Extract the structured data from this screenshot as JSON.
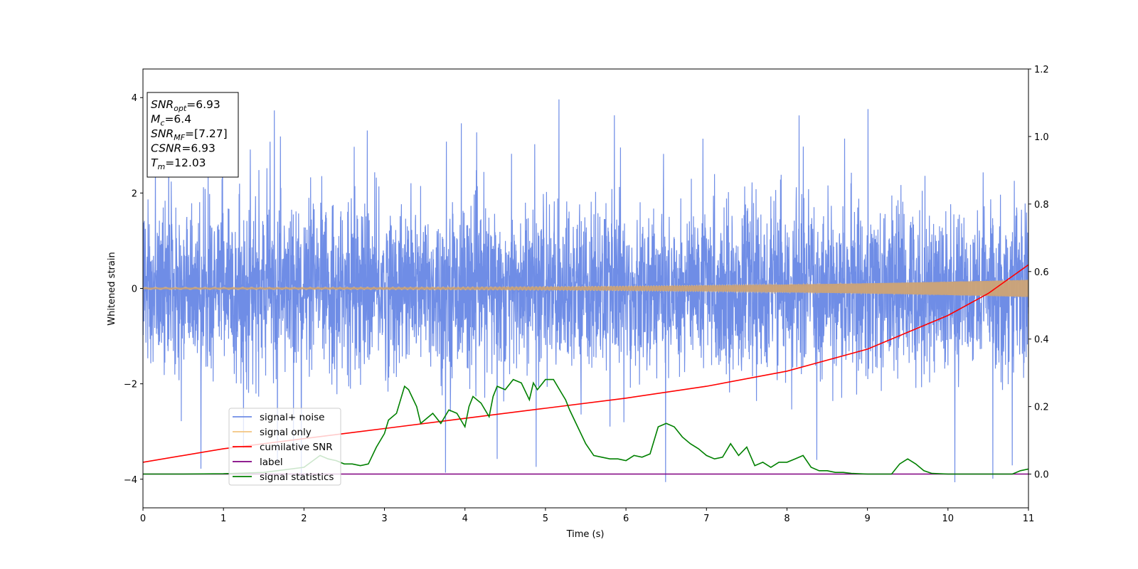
{
  "chart_data": {
    "type": "line",
    "xlabel": "Time (s)",
    "ylabel": "Whitened strain",
    "xlim": [
      0,
      11
    ],
    "ylim_left": [
      -4.6,
      4.6
    ],
    "ylim_right": [
      -0.1,
      1.2
    ],
    "x_ticks": [
      0,
      1,
      2,
      3,
      4,
      5,
      6,
      7,
      8,
      9,
      10,
      11
    ],
    "y_ticks_left": [
      -4,
      -2,
      0,
      2,
      4
    ],
    "y_ticks_right": [
      "0.0",
      "0.2",
      "0.4",
      "0.6",
      "0.8",
      "1.0",
      "1.2"
    ],
    "grid": false,
    "legend_position": "lower-left",
    "annotation_box": {
      "position": "upper-left",
      "lines": [
        {
          "sym": "SNR",
          "sub": "opt",
          "value": "=6.93"
        },
        {
          "sym": "M",
          "sub": "c",
          "value": "=6.4"
        },
        {
          "sym": "SNR",
          "sub": "MF",
          "value": "=[7.27]"
        },
        {
          "sym": "CSNR",
          "sub": "",
          "value": "=6.93"
        },
        {
          "sym": "T",
          "sub": "m",
          "value": "=12.03"
        }
      ]
    },
    "series": [
      {
        "name": "signal+ noise",
        "axis": "left",
        "color": "#6f8de6",
        "description_values": {
          "noise_std": 0.85,
          "max_spike": 4.2,
          "min_spike": -4.2
        }
      },
      {
        "name": "signal only",
        "axis": "left",
        "color": "#f2c580",
        "envelope_start": 0.02,
        "envelope_end": 0.18
      },
      {
        "name": "cumilative SNR",
        "axis": "right",
        "color": "#ff0000",
        "x": [
          0,
          1,
          2,
          3,
          4,
          5,
          6,
          7,
          8,
          9,
          10,
          10.5,
          11
        ],
        "y": [
          0.035,
          0.075,
          0.105,
          0.135,
          0.165,
          0.195,
          0.225,
          0.26,
          0.305,
          0.37,
          0.47,
          0.535,
          0.62
        ]
      },
      {
        "name": "label",
        "axis": "right",
        "color": "#800080",
        "x": [
          0,
          11
        ],
        "y": [
          0.0,
          0.0
        ]
      },
      {
        "name": "signal statistics",
        "axis": "right",
        "color": "#008000",
        "x": [
          0,
          0.5,
          1.0,
          1.5,
          2.0,
          2.2,
          2.3,
          2.4,
          2.5,
          2.6,
          2.7,
          2.8,
          2.9,
          3.0,
          3.05,
          3.15,
          3.25,
          3.3,
          3.4,
          3.45,
          3.5,
          3.6,
          3.7,
          3.8,
          3.9,
          4.0,
          4.05,
          4.1,
          4.2,
          4.3,
          4.35,
          4.4,
          4.5,
          4.6,
          4.7,
          4.8,
          4.85,
          4.9,
          5.0,
          5.1,
          5.2,
          5.25,
          5.3,
          5.4,
          5.5,
          5.6,
          5.7,
          5.8,
          5.9,
          6.0,
          6.1,
          6.2,
          6.3,
          6.4,
          6.5,
          6.6,
          6.7,
          6.8,
          6.9,
          7.0,
          7.1,
          7.2,
          7.3,
          7.4,
          7.5,
          7.6,
          7.7,
          7.8,
          7.9,
          8.0,
          8.1,
          8.2,
          8.3,
          8.4,
          8.5,
          8.6,
          8.7,
          8.8,
          9.0,
          9.2,
          9.3,
          9.4,
          9.5,
          9.6,
          9.7,
          9.8,
          10.0,
          10.3,
          10.6,
          10.8,
          10.9,
          11.0
        ],
        "y": [
          0.0,
          0.0,
          0.001,
          0.005,
          0.02,
          0.055,
          0.045,
          0.04,
          0.03,
          0.03,
          0.025,
          0.03,
          0.08,
          0.12,
          0.16,
          0.18,
          0.26,
          0.25,
          0.2,
          0.15,
          0.16,
          0.18,
          0.15,
          0.19,
          0.18,
          0.14,
          0.2,
          0.23,
          0.21,
          0.17,
          0.23,
          0.26,
          0.25,
          0.28,
          0.27,
          0.22,
          0.27,
          0.25,
          0.28,
          0.28,
          0.24,
          0.22,
          0.19,
          0.14,
          0.09,
          0.055,
          0.05,
          0.045,
          0.045,
          0.04,
          0.055,
          0.05,
          0.06,
          0.14,
          0.15,
          0.14,
          0.11,
          0.09,
          0.075,
          0.055,
          0.045,
          0.05,
          0.09,
          0.055,
          0.08,
          0.025,
          0.035,
          0.02,
          0.035,
          0.035,
          0.045,
          0.055,
          0.02,
          0.01,
          0.01,
          0.005,
          0.005,
          0.002,
          0.0,
          0.0,
          0.0,
          0.03,
          0.045,
          0.03,
          0.01,
          0.002,
          0.0,
          0.0,
          0.0,
          0.0,
          0.01,
          0.015
        ]
      }
    ]
  }
}
